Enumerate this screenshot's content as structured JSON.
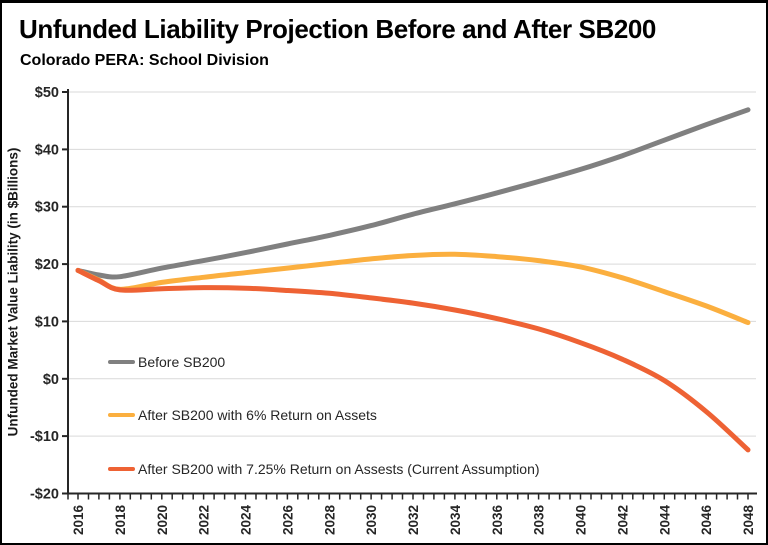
{
  "chart_data": {
    "type": "line",
    "title": "Unfunded Liability Projection Before and After SB200",
    "subtitle": "Colorado PERA: School Division",
    "ylabel": "Unfunded Market Value Liability (in $Billions)",
    "xlabel": "",
    "xlim": [
      2016,
      2048
    ],
    "ylim": [
      -20,
      50
    ],
    "grid": true,
    "legend_position": "inside-lower-left",
    "y_tick_values": [
      50,
      40,
      30,
      20,
      10,
      0,
      -10,
      -20
    ],
    "y_tick_labels": [
      "$50",
      "$40",
      "$30",
      "$20",
      "$10",
      "$0",
      "-$10",
      "-$20"
    ],
    "x_tick_values": [
      2016,
      2018,
      2020,
      2022,
      2024,
      2026,
      2028,
      2030,
      2032,
      2034,
      2036,
      2038,
      2040,
      2042,
      2044,
      2046,
      2048
    ],
    "x_tick_labels": [
      "2016",
      "2018",
      "2020",
      "2022",
      "2024",
      "2026",
      "2028",
      "2030",
      "2032",
      "2034",
      "2036",
      "2038",
      "2040",
      "2042",
      "2044",
      "2046",
      "2048"
    ],
    "x": [
      2016,
      2017,
      2018,
      2020,
      2022,
      2024,
      2026,
      2028,
      2030,
      2032,
      2034,
      2036,
      2038,
      2040,
      2042,
      2044,
      2046,
      2048
    ],
    "series": [
      {
        "name": "Before SB200",
        "color": "#808080",
        "values": [
          18.9,
          18.1,
          17.8,
          19.3,
          20.6,
          22.0,
          23.5,
          25.0,
          26.7,
          28.7,
          30.5,
          32.4,
          34.4,
          36.5,
          38.9,
          41.6,
          44.3,
          46.9
        ]
      },
      {
        "name": "After SB200 with 6% Return on Assets",
        "color": "#FBAF3F",
        "values": [
          18.9,
          17.2,
          15.6,
          16.8,
          17.7,
          18.5,
          19.3,
          20.1,
          20.9,
          21.5,
          21.7,
          21.3,
          20.6,
          19.5,
          17.6,
          15.2,
          12.7,
          9.8
        ]
      },
      {
        "name": "After SB200 with 7.25% Return on Assests (Current Assumption)",
        "color": "#EE6234",
        "values": [
          18.9,
          17.1,
          15.5,
          15.7,
          15.9,
          15.8,
          15.4,
          14.9,
          14.1,
          13.2,
          12.0,
          10.5,
          8.7,
          6.3,
          3.4,
          -0.3,
          -5.7,
          -12.4
        ]
      }
    ],
    "colors": {
      "gridline": "#d9d9d9",
      "axis": "#262626",
      "tick_text": "#262626"
    }
  }
}
